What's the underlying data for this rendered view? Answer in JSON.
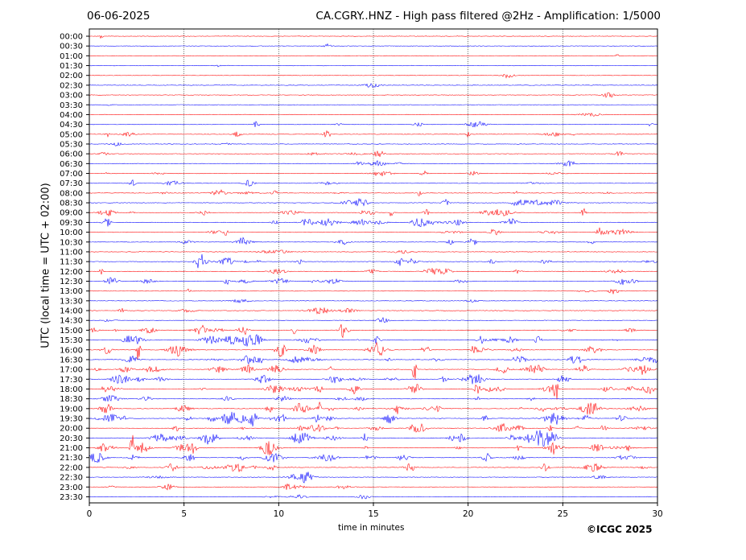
{
  "header": {
    "date": "06-06-2025",
    "title": "CA.CGRY..HNZ - High pass filtered @2Hz - Amplification: 1/5000"
  },
  "footer": {
    "copyright": "©ICGC 2025"
  },
  "chart_data": {
    "type": "line",
    "title": "CA.CGRY..HNZ - High pass filtered @2Hz - Amplification: 1/5000",
    "xlabel": "time in minutes",
    "ylabel": "UTC (local time = UTC + 02:00)",
    "xlim": [
      0,
      30
    ],
    "x_ticks": [
      0,
      5,
      10,
      15,
      20,
      25,
      30
    ],
    "x_grid": "dotted vertical lines every 5 minutes",
    "rows": [
      "00:00",
      "00:30",
      "01:00",
      "01:30",
      "02:00",
      "02:30",
      "03:00",
      "03:30",
      "04:00",
      "04:30",
      "05:00",
      "05:30",
      "06:00",
      "06:30",
      "07:00",
      "07:30",
      "08:00",
      "08:30",
      "09:00",
      "09:30",
      "10:00",
      "10:30",
      "11:00",
      "11:30",
      "12:00",
      "12:30",
      "13:00",
      "13:30",
      "14:00",
      "14:30",
      "15:00",
      "15:30",
      "16:00",
      "16:30",
      "17:00",
      "17:30",
      "18:00",
      "18:30",
      "19:00",
      "19:30",
      "20:00",
      "20:30",
      "21:00",
      "21:30",
      "22:00",
      "22:30",
      "23:00",
      "23:30"
    ],
    "colors": {
      "even_rows": "#ff0000",
      "odd_rows": "#0000ff"
    },
    "activity": [
      0.02,
      0.02,
      0.02,
      0.04,
      0.02,
      0.02,
      0.02,
      0.03,
      0.02,
      0.15,
      0.25,
      0.05,
      0.2,
      0.15,
      0.2,
      0.2,
      0.25,
      0.25,
      0.4,
      0.35,
      0.3,
      0.25,
      0.1,
      0.35,
      0.25,
      0.3,
      0.1,
      0.05,
      0.15,
      0.05,
      0.4,
      0.5,
      0.5,
      0.5,
      0.5,
      0.4,
      0.6,
      0.3,
      0.6,
      0.7,
      0.5,
      0.5,
      0.55,
      0.5,
      0.4,
      0.2,
      0.15,
      0.1
    ]
  }
}
